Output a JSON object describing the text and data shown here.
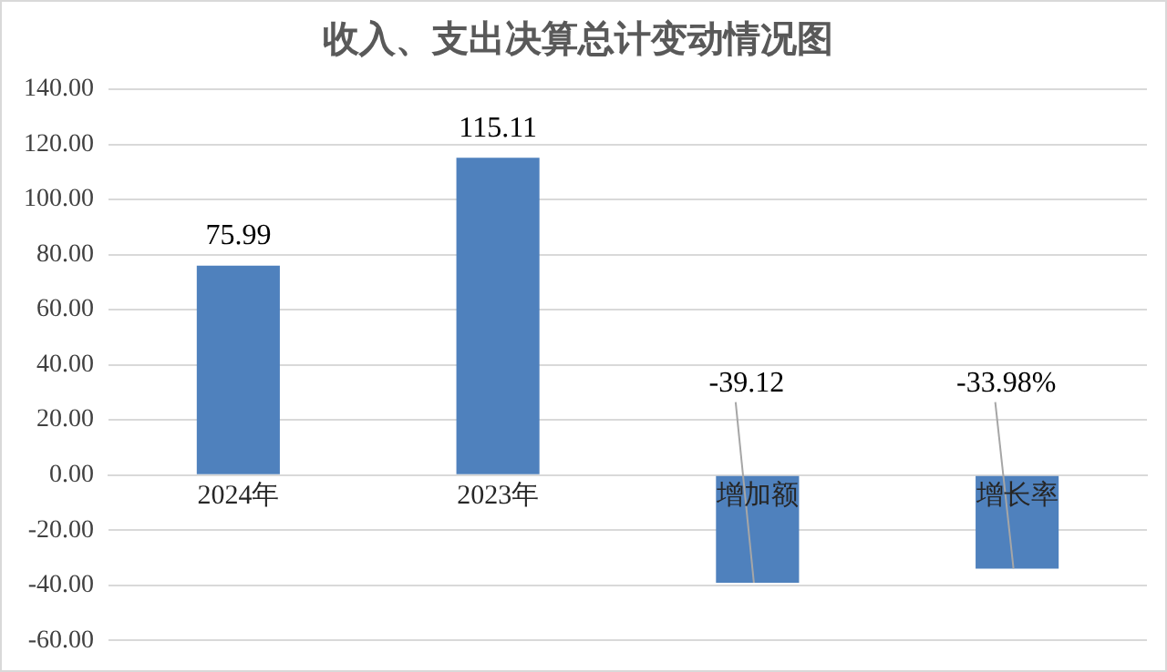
{
  "chart_data": {
    "type": "bar",
    "title": "收入、支出决算总计变动情况图",
    "categories": [
      "2024年",
      "2023年",
      "增加额",
      "增长率"
    ],
    "values": [
      75.99,
      115.11,
      -39.12,
      -33.98
    ],
    "value_labels": [
      "75.99",
      "115.11",
      "-39.12",
      "-33.98%"
    ],
    "color": "#4f81bd",
    "ylim": [
      -60,
      140
    ],
    "yticks": [
      {
        "value": -60,
        "label": "-60.00"
      },
      {
        "value": -40,
        "label": "-40.00"
      },
      {
        "value": -20,
        "label": "-20.00"
      },
      {
        "value": 0,
        "label": "0.00"
      },
      {
        "value": 20,
        "label": "20.00"
      },
      {
        "value": 40,
        "label": "40.00"
      },
      {
        "value": 60,
        "label": "60.00"
      },
      {
        "value": 80,
        "label": "80.00"
      },
      {
        "value": 100,
        "label": "100.00"
      },
      {
        "value": 120,
        "label": "120.00"
      },
      {
        "value": 140,
        "label": "140.00"
      }
    ],
    "grid": "y",
    "legend": false
  }
}
